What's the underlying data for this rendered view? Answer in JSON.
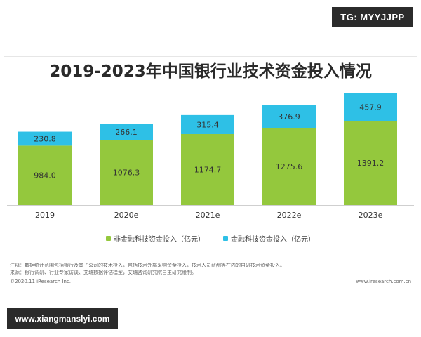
{
  "watermark_top": "TG: MYYJJPP",
  "watermark_bottom": "www.xiangmanslyi.com",
  "chart_data": {
    "type": "bar",
    "stacked": true,
    "title": "2019-2023年中国银行业技术资金投入情况",
    "categories": [
      "2019",
      "2020e",
      "2021e",
      "2022e",
      "2023e"
    ],
    "series": [
      {
        "name": "非金融科技资金投入（亿元）",
        "color": "#94c83d",
        "values": [
          984.0,
          1076.3,
          1174.7,
          1275.6,
          1391.2
        ]
      },
      {
        "name": "金融科技资金投入（亿元）",
        "color": "#2ec0e6",
        "values": [
          230.8,
          266.1,
          315.4,
          376.9,
          457.9
        ]
      }
    ],
    "value_labels": [
      [
        "984.0",
        "1076.3",
        "1174.7",
        "1275.6",
        "1391.2"
      ],
      [
        "230.8",
        "266.1",
        "315.4",
        "376.9",
        "457.9"
      ]
    ],
    "ylim": [
      0,
      1849.1
    ],
    "legend_position": "bottom"
  },
  "notes": {
    "line1": "注释：数据统计范围包括银行及其子公司的技术投入，包括技术外部采购资金投入，技术人员薪酬等在内的自研技术资金投入。",
    "line2": "来源：银行调研、行业专家访谈、艾瑞数据评估模型，艾瑞咨询研究院自主研究绘制。"
  },
  "footer": {
    "left": "©2020.11 iResearch Inc.",
    "right": "www.iresearch.com.cn"
  }
}
